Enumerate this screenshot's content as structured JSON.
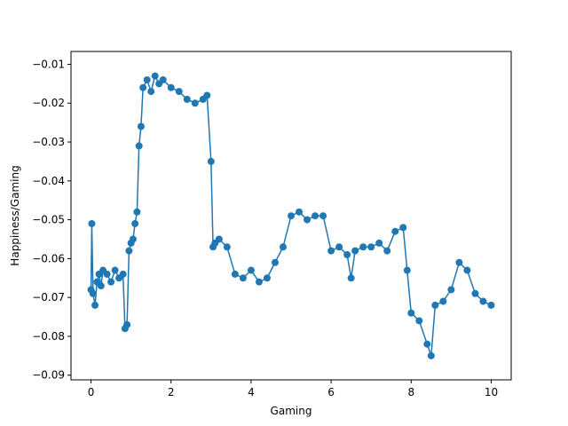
{
  "chart_data": {
    "type": "line",
    "xlabel": "Gaming",
    "ylabel": "Happiness/Gaming",
    "xlim": [
      -0.5,
      10.5
    ],
    "ylim": [
      -0.0912,
      -0.0067
    ],
    "x_ticks": [
      0,
      2,
      4,
      6,
      8,
      10
    ],
    "x_tick_labels": [
      "0",
      "2",
      "4",
      "6",
      "8",
      "10"
    ],
    "y_ticks": [
      -0.09,
      -0.08,
      -0.07,
      -0.06,
      -0.05,
      -0.04,
      -0.03,
      -0.02,
      -0.01
    ],
    "y_tick_labels": [
      "−0.09",
      "−0.08",
      "−0.07",
      "−0.06",
      "−0.05",
      "−0.04",
      "−0.03",
      "−0.02",
      "−0.01"
    ],
    "grid": false,
    "legend": "none",
    "markers": true,
    "color": "#1f77b4",
    "series": [
      {
        "x": [
          0.0,
          0.02,
          0.05,
          0.1,
          0.15,
          0.2,
          0.25,
          0.3,
          0.4,
          0.5,
          0.6,
          0.7,
          0.8,
          0.85,
          0.9,
          0.95,
          1.0,
          1.05,
          1.1,
          1.15,
          1.2,
          1.25,
          1.3,
          1.4,
          1.5,
          1.6,
          1.7,
          1.8,
          2.0,
          2.2,
          2.4,
          2.6,
          2.8,
          2.9,
          3.0,
          3.05,
          3.1,
          3.2,
          3.4,
          3.6,
          3.8,
          4.0,
          4.2,
          4.4,
          4.6,
          4.8,
          5.0,
          5.2,
          5.4,
          5.6,
          5.8,
          6.0,
          6.2,
          6.4,
          6.5,
          6.6,
          6.8,
          7.0,
          7.2,
          7.4,
          7.6,
          7.8,
          7.9,
          8.0,
          8.2,
          8.4,
          8.5,
          8.6,
          8.8,
          9.0,
          9.2,
          9.4,
          9.6,
          9.8,
          10.0
        ],
        "y": [
          -0.068,
          -0.051,
          -0.069,
          -0.072,
          -0.066,
          -0.064,
          -0.067,
          -0.063,
          -0.064,
          -0.066,
          -0.063,
          -0.065,
          -0.064,
          -0.078,
          -0.077,
          -0.058,
          -0.056,
          -0.055,
          -0.051,
          -0.048,
          -0.031,
          -0.026,
          -0.016,
          -0.014,
          -0.017,
          -0.013,
          -0.015,
          -0.014,
          -0.016,
          -0.017,
          -0.019,
          -0.02,
          -0.019,
          -0.018,
          -0.035,
          -0.057,
          -0.056,
          -0.055,
          -0.057,
          -0.064,
          -0.065,
          -0.063,
          -0.066,
          -0.065,
          -0.061,
          -0.057,
          -0.049,
          -0.048,
          -0.05,
          -0.049,
          -0.049,
          -0.058,
          -0.057,
          -0.059,
          -0.065,
          -0.058,
          -0.057,
          -0.057,
          -0.056,
          -0.058,
          -0.053,
          -0.052,
          -0.063,
          -0.074,
          -0.076,
          -0.082,
          -0.085,
          -0.072,
          -0.071,
          -0.068,
          -0.061,
          -0.063,
          -0.069,
          -0.071,
          -0.072
        ]
      }
    ]
  }
}
